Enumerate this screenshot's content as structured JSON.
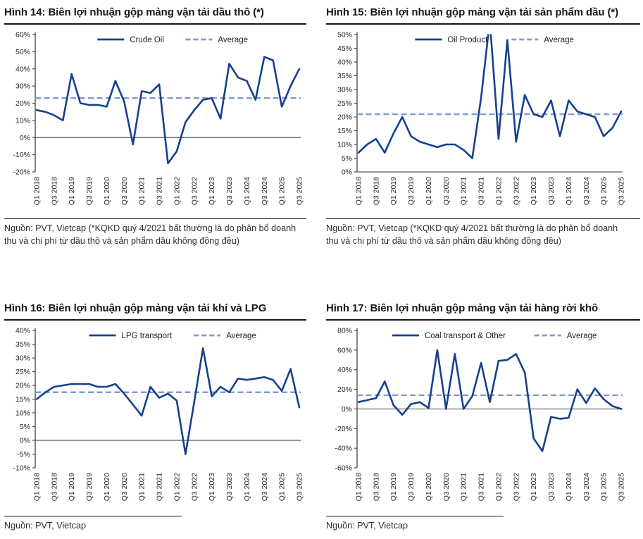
{
  "footnote_top": "Nguồn: PVT, Vietcap (*KQKD quý 4/2021 bất thường là do phân bổ doanh thu và chi phí từ dầu thô và sản phẩm dầu không đồng đều)",
  "footnote_bottom": "Nguồn: PVT, Vietcap",
  "colors": {
    "series": "#17408F",
    "average": "#8598D2",
    "zero_line": "#595959",
    "axis_line": "#404040",
    "tick_text": "#262626",
    "title_text": "#161616"
  },
  "categories": [
    "Q1 2018",
    "Q2 2018",
    "Q3 2018",
    "Q4 2018",
    "Q1 2019",
    "Q2 2019",
    "Q3 2019",
    "Q4 2019",
    "Q1 2020",
    "Q2 2020",
    "Q3 2020",
    "Q4 2020",
    "Q1 2021",
    "Q2 2021",
    "Q3 2021",
    "Q4 2021",
    "Q1 2022",
    "Q2 2022",
    "Q3 2022",
    "Q4 2022",
    "Q1 2023",
    "Q2 2023",
    "Q3 2023",
    "Q4 2023",
    "Q1 2024",
    "Q2 2024",
    "Q3 2024",
    "Q4 2024",
    "Q1 2025",
    "Q2 2025",
    "Q3 2025"
  ],
  "chart_data": [
    {
      "type": "line",
      "title": "Hình 14: Biên lợi nhuận gộp mảng vận tải dầu thô (*)",
      "series_name": "Crude Oil",
      "average_label": "Average",
      "average_value": 23,
      "ylim": [
        -20,
        60
      ],
      "ytick_step": 10,
      "legend_position": "top-center",
      "grid": false,
      "values": [
        16,
        15,
        13,
        10,
        37,
        20,
        19,
        19,
        18,
        33,
        21,
        -4,
        27,
        26,
        31,
        -15,
        -8,
        9,
        16,
        22,
        23,
        11,
        43,
        35,
        33,
        22,
        47,
        45,
        18,
        30,
        40
      ]
    },
    {
      "type": "line",
      "title": "Hình 15: Biên lợi nhuận gộp mảng vận tải sản phẩm dầu (*)",
      "series_name": "Oil Product",
      "average_label": "Average",
      "average_value": 21,
      "ylim": [
        0,
        50
      ],
      "ytick_step": 5,
      "legend_position": "top-center",
      "grid": false,
      "note": "Q4 2021 spike exceeds axis top and is clipped at 50%",
      "values": [
        7,
        10,
        12,
        7,
        14,
        20,
        13,
        11,
        10,
        9,
        10,
        10,
        8,
        5,
        27,
        55,
        12,
        48,
        11,
        28,
        21,
        20,
        26,
        13,
        26,
        22,
        21,
        20,
        13,
        16,
        22
      ]
    },
    {
      "type": "line",
      "title": "Hình 16: Biên lợi nhuận gộp mảng vận tải khí và LPG",
      "series_name": "LPG transport",
      "average_label": "Average",
      "average_value": 17.5,
      "ylim": [
        -10,
        40
      ],
      "ytick_step": 5,
      "legend_position": "top-center",
      "grid": false,
      "values": [
        15,
        17.5,
        19.5,
        20,
        20.5,
        20.5,
        20.5,
        19.5,
        19.5,
        20.5,
        17,
        13,
        9,
        19.5,
        15.5,
        17,
        14.5,
        -5,
        14,
        33.5,
        16,
        19.5,
        17.5,
        22.5,
        22,
        22.5,
        23,
        22,
        18,
        26,
        12
      ]
    },
    {
      "type": "line",
      "title": "Hình 17: Biên lợi nhuận gộp mảng vận tải hàng rời khô",
      "series_name": "Coal transport & Other",
      "average_label": "Average",
      "average_value": 14,
      "ylim": [
        -60,
        80
      ],
      "ytick_step": 20,
      "legend_position": "top-center",
      "grid": false,
      "values": [
        7,
        9,
        11,
        28,
        4,
        -6,
        5,
        7,
        1,
        60,
        0,
        56,
        0,
        13,
        47,
        7,
        49,
        50,
        56,
        37,
        -30,
        -43,
        -8,
        -10,
        -9,
        20,
        6,
        21,
        10,
        3,
        0
      ]
    }
  ]
}
